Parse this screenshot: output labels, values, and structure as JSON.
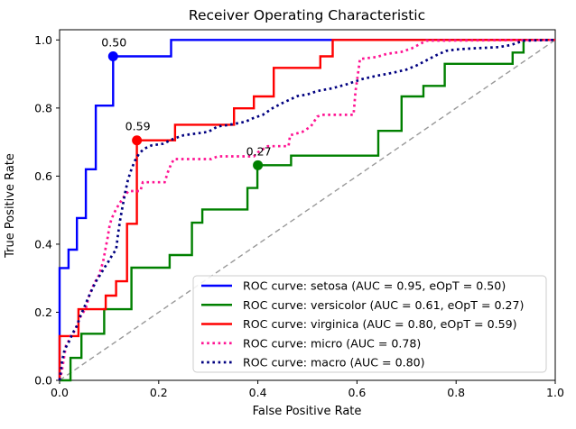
{
  "chart_data": {
    "type": "line",
    "title": "Receiver Operating Characteristic",
    "xlabel": "False Positive Rate",
    "ylabel": "True Positive Rate",
    "xlim": [
      0.0,
      1.0
    ],
    "ylim": [
      0.0,
      1.03
    ],
    "grid": false,
    "x_ticks": [
      "0.0",
      "0.2",
      "0.4",
      "0.6",
      "0.8",
      "1.0"
    ],
    "y_ticks": [
      "0.0",
      "0.2",
      "0.4",
      "0.6",
      "0.8",
      "1.0"
    ],
    "legend_position": "lower right",
    "reference_line": {
      "name": "chance-diagonal",
      "style": "dashed",
      "color": "#999999",
      "points": [
        [
          0,
          0
        ],
        [
          1,
          1
        ]
      ]
    },
    "series": [
      {
        "name": "setosa",
        "legend_label": "ROC curve: setosa (AUC = 0.95, eOpT = 0.50)",
        "auc": "0.95",
        "eopt": "0.50",
        "color": "#0000ff",
        "style": "solid",
        "marker": {
          "x": 0.108,
          "y": 0.952,
          "label": "0.50"
        },
        "points": [
          [
            0,
            0
          ],
          [
            0,
            0.33
          ],
          [
            0.018,
            0.33
          ],
          [
            0.018,
            0.384
          ],
          [
            0.035,
            0.384
          ],
          [
            0.035,
            0.477
          ],
          [
            0.053,
            0.477
          ],
          [
            0.053,
            0.62
          ],
          [
            0.073,
            0.62
          ],
          [
            0.073,
            0.807
          ],
          [
            0.108,
            0.807
          ],
          [
            0.108,
            0.952
          ],
          [
            0.225,
            0.952
          ],
          [
            0.225,
            1.0
          ],
          [
            1.0,
            1.0
          ]
        ]
      },
      {
        "name": "versicolor",
        "legend_label": "ROC curve: versicolor (AUC = 0.61, eOpT = 0.27)",
        "auc": "0.61",
        "eopt": "0.27",
        "color": "#008000",
        "style": "solid",
        "marker": {
          "x": 0.4,
          "y": 0.632,
          "label": "0.27"
        },
        "points": [
          [
            0,
            0
          ],
          [
            0.022,
            0
          ],
          [
            0.022,
            0.066
          ],
          [
            0.044,
            0.066
          ],
          [
            0.044,
            0.137
          ],
          [
            0.09,
            0.137
          ],
          [
            0.09,
            0.209
          ],
          [
            0.145,
            0.209
          ],
          [
            0.145,
            0.331
          ],
          [
            0.222,
            0.331
          ],
          [
            0.222,
            0.368
          ],
          [
            0.267,
            0.368
          ],
          [
            0.267,
            0.463
          ],
          [
            0.288,
            0.463
          ],
          [
            0.288,
            0.502
          ],
          [
            0.379,
            0.502
          ],
          [
            0.379,
            0.565
          ],
          [
            0.399,
            0.565
          ],
          [
            0.399,
            0.632
          ],
          [
            0.467,
            0.632
          ],
          [
            0.467,
            0.66
          ],
          [
            0.643,
            0.66
          ],
          [
            0.643,
            0.733
          ],
          [
            0.69,
            0.733
          ],
          [
            0.69,
            0.834
          ],
          [
            0.734,
            0.834
          ],
          [
            0.734,
            0.865
          ],
          [
            0.777,
            0.865
          ],
          [
            0.777,
            0.93
          ],
          [
            0.914,
            0.93
          ],
          [
            0.914,
            0.963
          ],
          [
            0.936,
            0.963
          ],
          [
            0.936,
            1.0
          ],
          [
            1.0,
            1.0
          ]
        ]
      },
      {
        "name": "virginica",
        "legend_label": "ROC curve: virginica (AUC = 0.80, eOpT = 0.59)",
        "auc": "0.80",
        "eopt": "0.59",
        "color": "#ff0000",
        "style": "solid",
        "marker": {
          "x": 0.156,
          "y": 0.705,
          "label": "0.59"
        },
        "points": [
          [
            0,
            0
          ],
          [
            0,
            0.13
          ],
          [
            0.038,
            0.13
          ],
          [
            0.038,
            0.209
          ],
          [
            0.093,
            0.209
          ],
          [
            0.093,
            0.249
          ],
          [
            0.114,
            0.249
          ],
          [
            0.114,
            0.291
          ],
          [
            0.136,
            0.291
          ],
          [
            0.136,
            0.46
          ],
          [
            0.156,
            0.46
          ],
          [
            0.156,
            0.705
          ],
          [
            0.233,
            0.705
          ],
          [
            0.233,
            0.751
          ],
          [
            0.352,
            0.751
          ],
          [
            0.352,
            0.799
          ],
          [
            0.392,
            0.799
          ],
          [
            0.392,
            0.834
          ],
          [
            0.432,
            0.834
          ],
          [
            0.432,
            0.918
          ],
          [
            0.526,
            0.918
          ],
          [
            0.526,
            0.952
          ],
          [
            0.551,
            0.952
          ],
          [
            0.551,
            1.0
          ],
          [
            1.0,
            1.0
          ]
        ]
      },
      {
        "name": "micro",
        "legend_label": "ROC curve: micro (AUC = 0.78)",
        "auc": "0.78",
        "color": "#ff1493",
        "style": "dotted",
        "points": [
          [
            0,
            0
          ],
          [
            0.004,
            0.023
          ],
          [
            0.008,
            0.058
          ],
          [
            0.013,
            0.103
          ],
          [
            0.018,
            0.115
          ],
          [
            0.022,
            0.13
          ],
          [
            0.031,
            0.146
          ],
          [
            0.04,
            0.182
          ],
          [
            0.053,
            0.212
          ],
          [
            0.06,
            0.25
          ],
          [
            0.07,
            0.285
          ],
          [
            0.08,
            0.31
          ],
          [
            0.088,
            0.35
          ],
          [
            0.093,
            0.39
          ],
          [
            0.097,
            0.42
          ],
          [
            0.101,
            0.455
          ],
          [
            0.105,
            0.475
          ],
          [
            0.113,
            0.5
          ],
          [
            0.121,
            0.52
          ],
          [
            0.13,
            0.54
          ],
          [
            0.139,
            0.556
          ],
          [
            0.163,
            0.556
          ],
          [
            0.168,
            0.582
          ],
          [
            0.212,
            0.582
          ],
          [
            0.218,
            0.61
          ],
          [
            0.225,
            0.635
          ],
          [
            0.231,
            0.65
          ],
          [
            0.306,
            0.65
          ],
          [
            0.319,
            0.658
          ],
          [
            0.392,
            0.658
          ],
          [
            0.4,
            0.67
          ],
          [
            0.42,
            0.688
          ],
          [
            0.462,
            0.688
          ],
          [
            0.465,
            0.72
          ],
          [
            0.49,
            0.73
          ],
          [
            0.507,
            0.746
          ],
          [
            0.52,
            0.775
          ],
          [
            0.53,
            0.78
          ],
          [
            0.593,
            0.78
          ],
          [
            0.597,
            0.85
          ],
          [
            0.603,
            0.91
          ],
          [
            0.606,
            0.944
          ],
          [
            0.64,
            0.95
          ],
          [
            0.66,
            0.959
          ],
          [
            0.69,
            0.965
          ],
          [
            0.71,
            0.975
          ],
          [
            0.74,
            0.998
          ],
          [
            1.0,
            1.0
          ]
        ]
      },
      {
        "name": "macro",
        "legend_label": "ROC curve: macro (AUC = 0.80)",
        "auc": "0.80",
        "color": "#000080",
        "style": "dotted",
        "points": [
          [
            0,
            0
          ],
          [
            0.005,
            0.055
          ],
          [
            0.01,
            0.09
          ],
          [
            0.018,
            0.111
          ],
          [
            0.027,
            0.14
          ],
          [
            0.035,
            0.16
          ],
          [
            0.042,
            0.19
          ],
          [
            0.049,
            0.212
          ],
          [
            0.057,
            0.24
          ],
          [
            0.064,
            0.262
          ],
          [
            0.073,
            0.29
          ],
          [
            0.082,
            0.31
          ],
          [
            0.09,
            0.33
          ],
          [
            0.099,
            0.35
          ],
          [
            0.107,
            0.37
          ],
          [
            0.114,
            0.384
          ],
          [
            0.118,
            0.43
          ],
          [
            0.122,
            0.47
          ],
          [
            0.127,
            0.51
          ],
          [
            0.132,
            0.55
          ],
          [
            0.138,
            0.59
          ],
          [
            0.145,
            0.62
          ],
          [
            0.152,
            0.645
          ],
          [
            0.16,
            0.665
          ],
          [
            0.17,
            0.68
          ],
          [
            0.185,
            0.69
          ],
          [
            0.209,
            0.695
          ],
          [
            0.23,
            0.71
          ],
          [
            0.25,
            0.72
          ],
          [
            0.28,
            0.726
          ],
          [
            0.3,
            0.73
          ],
          [
            0.319,
            0.746
          ],
          [
            0.34,
            0.75
          ],
          [
            0.355,
            0.754
          ],
          [
            0.375,
            0.76
          ],
          [
            0.39,
            0.77
          ],
          [
            0.41,
            0.78
          ],
          [
            0.43,
            0.8
          ],
          [
            0.45,
            0.815
          ],
          [
            0.465,
            0.825
          ],
          [
            0.48,
            0.835
          ],
          [
            0.5,
            0.84
          ],
          [
            0.52,
            0.85
          ],
          [
            0.55,
            0.858
          ],
          [
            0.58,
            0.87
          ],
          [
            0.61,
            0.885
          ],
          [
            0.64,
            0.895
          ],
          [
            0.66,
            0.9
          ],
          [
            0.68,
            0.906
          ],
          [
            0.7,
            0.913
          ],
          [
            0.72,
            0.925
          ],
          [
            0.74,
            0.94
          ],
          [
            0.76,
            0.955
          ],
          [
            0.78,
            0.968
          ],
          [
            0.8,
            0.972
          ],
          [
            0.83,
            0.975
          ],
          [
            0.86,
            0.977
          ],
          [
            0.886,
            0.979
          ],
          [
            0.91,
            0.985
          ],
          [
            0.936,
            0.998
          ],
          [
            1.0,
            1.0
          ]
        ]
      }
    ]
  }
}
